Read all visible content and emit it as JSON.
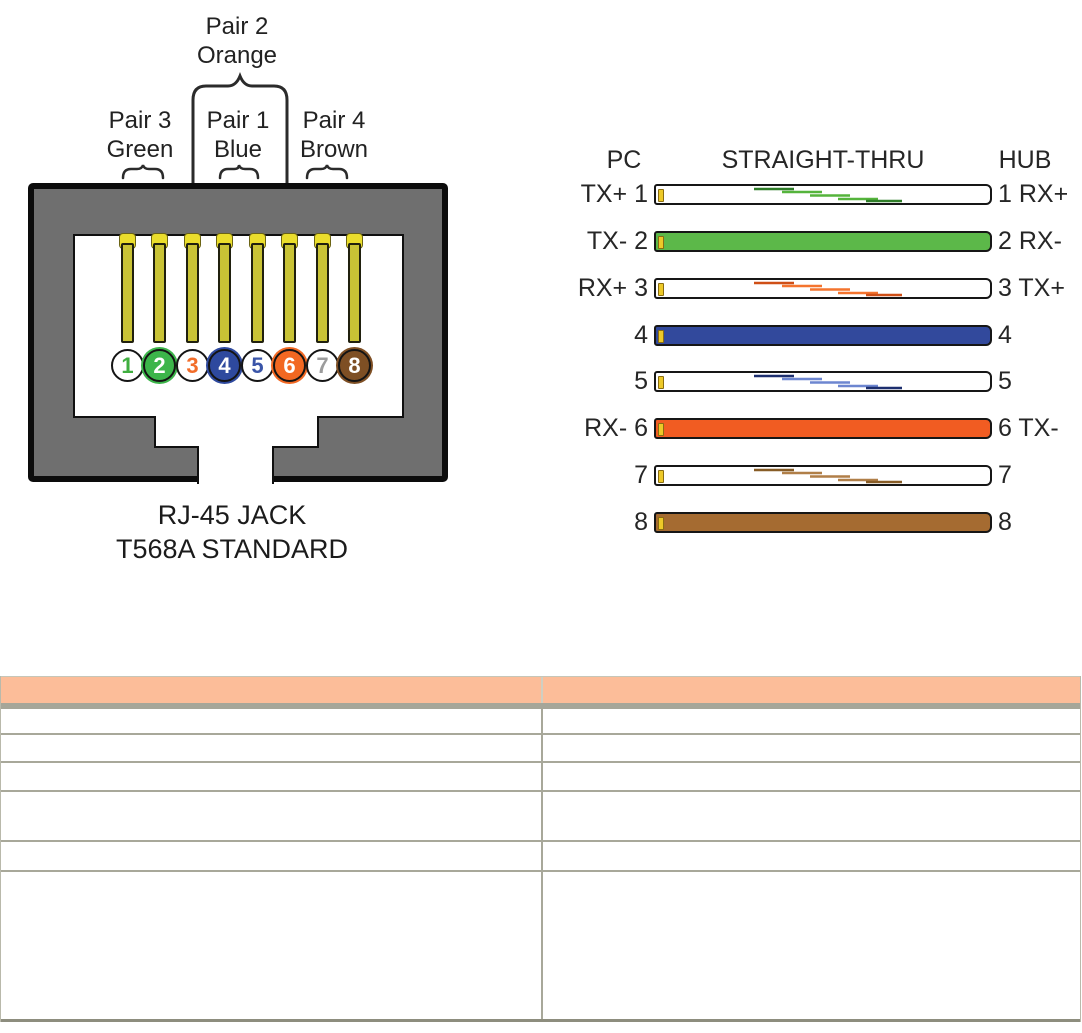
{
  "jack_diagram": {
    "pair_labels": [
      {
        "pair": "Pair 2",
        "color_name": "Orange"
      },
      {
        "pair": "Pair 3",
        "color_name": "Green"
      },
      {
        "pair": "Pair 1",
        "color_name": "Blue"
      },
      {
        "pair": "Pair 4",
        "color_name": "Brown"
      }
    ],
    "pins": [
      {
        "number": "1",
        "fill": "#ffffff",
        "number_color": "#3fae3f"
      },
      {
        "number": "2",
        "fill": "#3cb54a",
        "number_color": "#ffffff"
      },
      {
        "number": "3",
        "fill": "#ffffff",
        "number_color": "#f26d2a"
      },
      {
        "number": "4",
        "fill": "#2e499e",
        "number_color": "#ffffff"
      },
      {
        "number": "5",
        "fill": "#ffffff",
        "number_color": "#3a55a8"
      },
      {
        "number": "6",
        "fill": "#f26822",
        "number_color": "#ffffff"
      },
      {
        "number": "7",
        "fill": "#ffffff",
        "number_color": "#9c9c9c"
      },
      {
        "number": "8",
        "fill": "#7e4f24",
        "number_color": "#ffffff"
      }
    ],
    "pin_color": "#c9c335",
    "caption": [
      "RJ-45 JACK",
      "T568A STANDARD"
    ]
  },
  "cable_diagram": {
    "left_device": "PC",
    "title": "STRAIGHT-THRU",
    "right_device": "HUB",
    "wires": [
      {
        "left_label": "TX+ 1",
        "right_label": "1 RX+",
        "pattern": "striped",
        "color": "#55b43c",
        "dark": "#2f7d28"
      },
      {
        "left_label": "TX- 2",
        "right_label": "2 RX-",
        "pattern": "solid",
        "color": "#5cb849"
      },
      {
        "left_label": "RX+ 3",
        "right_label": "3 TX+",
        "pattern": "striped",
        "color": "#f4742e",
        "dark": "#cf4f16"
      },
      {
        "left_label": "4",
        "right_label": "4",
        "pattern": "solid",
        "color": "#32499c"
      },
      {
        "left_label": "5",
        "right_label": "5",
        "pattern": "striped",
        "color": "#6d86d0",
        "dark": "#1c2e6e"
      },
      {
        "left_label": "RX- 6",
        "right_label": "6 TX-",
        "pattern": "solid",
        "color": "#f15c22"
      },
      {
        "left_label": "7",
        "right_label": "7",
        "pattern": "striped",
        "color": "#b07f48",
        "dark": "#875c26"
      },
      {
        "left_label": "8",
        "right_label": "8",
        "pattern": "solid",
        "color": "#a56b31"
      }
    ]
  },
  "table": {
    "header_fill": "#fcbd99",
    "grid_color": "#a8a89a",
    "header_cells": [
      "",
      ""
    ],
    "rows": [
      [
        "",
        ""
      ],
      [
        "",
        ""
      ],
      [
        "",
        ""
      ],
      [
        "",
        ""
      ],
      [
        "",
        ""
      ],
      [
        "",
        ""
      ]
    ]
  }
}
